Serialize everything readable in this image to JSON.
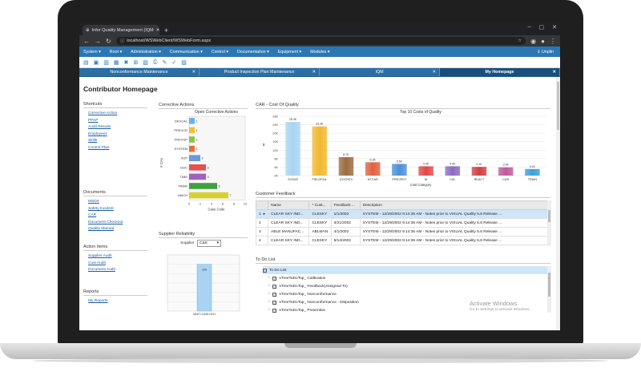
{
  "browser": {
    "tab_title": "Infor Quality Management (IQM",
    "url": "localhost/WSWebClient/WSWebForm.aspx"
  },
  "menu": {
    "items": [
      "System ▾",
      "Root ▾",
      "Administration ▾",
      "Communication ▾",
      "Control ▾",
      "Documentation ▾",
      "Equipment ▾",
      "Modules ▾"
    ],
    "user": "⇓ Unplin"
  },
  "app_tabs": [
    {
      "label": "Nonconformance Maintenance"
    },
    {
      "label": "Product Inspection Plan Maintenance"
    },
    {
      "label": "IQM"
    },
    {
      "label": "My Homepage"
    }
  ],
  "page_title": "Contributor Homepage",
  "sections": {
    "shortcuts": {
      "title": "Shortcuts",
      "links": [
        "Corrective Action",
        "PPAP",
        "Audit Results",
        "Employees",
        "Skills",
        "Control Plan"
      ]
    },
    "documents": {
      "title": "Documents",
      "links": [
        "MSDS",
        "Safety Incident",
        "CAR",
        "Document Checkout",
        "Quality Manual"
      ]
    },
    "action_items": {
      "title": "Action Items",
      "links": [
        "Supplier Audit",
        "Cust Audit",
        "Document Audit"
      ]
    },
    "reports": {
      "title": "Reports",
      "links": [
        "My Reports"
      ]
    }
  },
  "corrective_actions": {
    "panel_title": "Corrective Actions",
    "chart_title": "Open Corrective Actions",
    "xlabel": "Case Code",
    "ylabel": "# CAs"
  },
  "supplier_reliability": {
    "panel_title": "Supplier Reliability",
    "supplier_label": "Supplier",
    "supplier_value": "C&S"
  },
  "car_cost": {
    "panel_title": "CAR - Cost Of Quality",
    "chart_title": "Top 10 Costs of Quality",
    "xlabel": "Cost Category",
    "ylabel": "$"
  },
  "customer_feedback": {
    "panel_title": "Customer Feedback",
    "columns": [
      "",
      "Name",
      "* Cust...",
      "Feedback ...",
      "Description"
    ],
    "rows": [
      {
        "num": "1",
        "name": "CLEAR SKY IND...",
        "cust": "CLESKY",
        "date": "1/1/2002",
        "desc": "SYSTEM - 12/29/2002 9:14:36 AM - Notes prior to VISUAL Quality 5.6 Release ..."
      },
      {
        "num": "2",
        "name": "CLEAR SKY IND...",
        "cust": "CLESKY",
        "date": "3/21/2002",
        "desc": "SYSTEM - 12/29/2002 9:14:36 AM - Notes prior to VISUAL Quality 5.6 Release ..."
      },
      {
        "num": "3",
        "name": "ABLE MANUFAC...",
        "cust": "ABLMAN",
        "date": "4/1/2002",
        "desc": "SYSTEM - 12/29/2002 9:14:36 AM - Notes prior to VISUAL Quality 5.6 Release ..."
      },
      {
        "num": "4",
        "name": "CLEAR SKY IND...",
        "cust": "CLESKY",
        "date": "5/14/2002",
        "desc": "SYSTEM - 12/29/2002 9:14:36 AM - Notes prior to VISUAL Quality 5.6 Release ..."
      }
    ]
  },
  "todo": {
    "panel_title": "To Do List",
    "root": "To Do List",
    "items": [
      "sTreeToDoTop_ Calibration",
      "sTreeToDoTop_ Feedback(Assigned To)",
      "sTreeToDoTop_ Nonconformance",
      "sTreeToDoTop_ Nonconformance - Disposition",
      "sTreeToDoTop_ Preventive"
    ]
  },
  "watermark": {
    "line1": "Activate Windows",
    "line2": "Go to Settings to activate Windows."
  },
  "chart_data": [
    {
      "type": "bar",
      "orientation": "horizontal",
      "title": "Open Corrective Actions",
      "xlabel": "Case Code",
      "ylabel": "# CAs",
      "categories": [
        "DEVCAL",
        "PREVCR",
        "PREVUP",
        "SYSTEM",
        "SUP",
        "DOC",
        "TIME",
        "TRAIN",
        "MACH"
      ],
      "values": [
        1,
        1,
        1,
        1,
        2,
        3,
        3,
        5,
        7
      ],
      "colors": [
        "#6ab4e8",
        "#f2c030",
        "#8fc250",
        "#e87030",
        "#6a9ad8",
        "#e85050",
        "#a060c0",
        "#40a040",
        "#d8d030"
      ],
      "xlim": [
        0,
        10
      ],
      "xticks": [
        "0",
        "2",
        "4",
        "6",
        "8",
        "10"
      ]
    },
    {
      "type": "bar",
      "title": "Top 10 Costs of Quality",
      "xlabel": "Cost Category",
      "ylabel": "$",
      "categories": [
        "SCRAP",
        "FIELDFAIL",
        "DOCREV",
        "NTCAR",
        "PREVENT",
        "W",
        "CAL",
        "REACT",
        "CAR",
        "TRAIN"
      ],
      "values": [
        25.3,
        23.2,
        8.7,
        6.3,
        5.5,
        4.4,
        4.4,
        4.1,
        3.9,
        3.1
      ],
      "labels": [
        "25.3K",
        "23.2K",
        "8.7K",
        "6.3K",
        "5.5K",
        "4.4K",
        "4.4K",
        "4.1K",
        "3.9K",
        "3.1K"
      ],
      "colors": [
        "#a8d4f2",
        "#f2b830",
        "#9a6a40",
        "#e06040",
        "#4a90d8",
        "#e04848",
        "#8a6ac0",
        "#d04040",
        "#c05898",
        "#3aa0d8"
      ],
      "ylim": [
        0,
        28
      ],
      "yticks": [
        "0K",
        "4K",
        "8K",
        "12K",
        "16K",
        "20K",
        "24K",
        "28K"
      ]
    },
    {
      "type": "bar",
      "title": "",
      "categories": [
        "MWTI-1645-HCH"
      ],
      "values": [
        100
      ],
      "labels": [
        "100"
      ],
      "ylim": [
        0,
        120
      ]
    }
  ]
}
